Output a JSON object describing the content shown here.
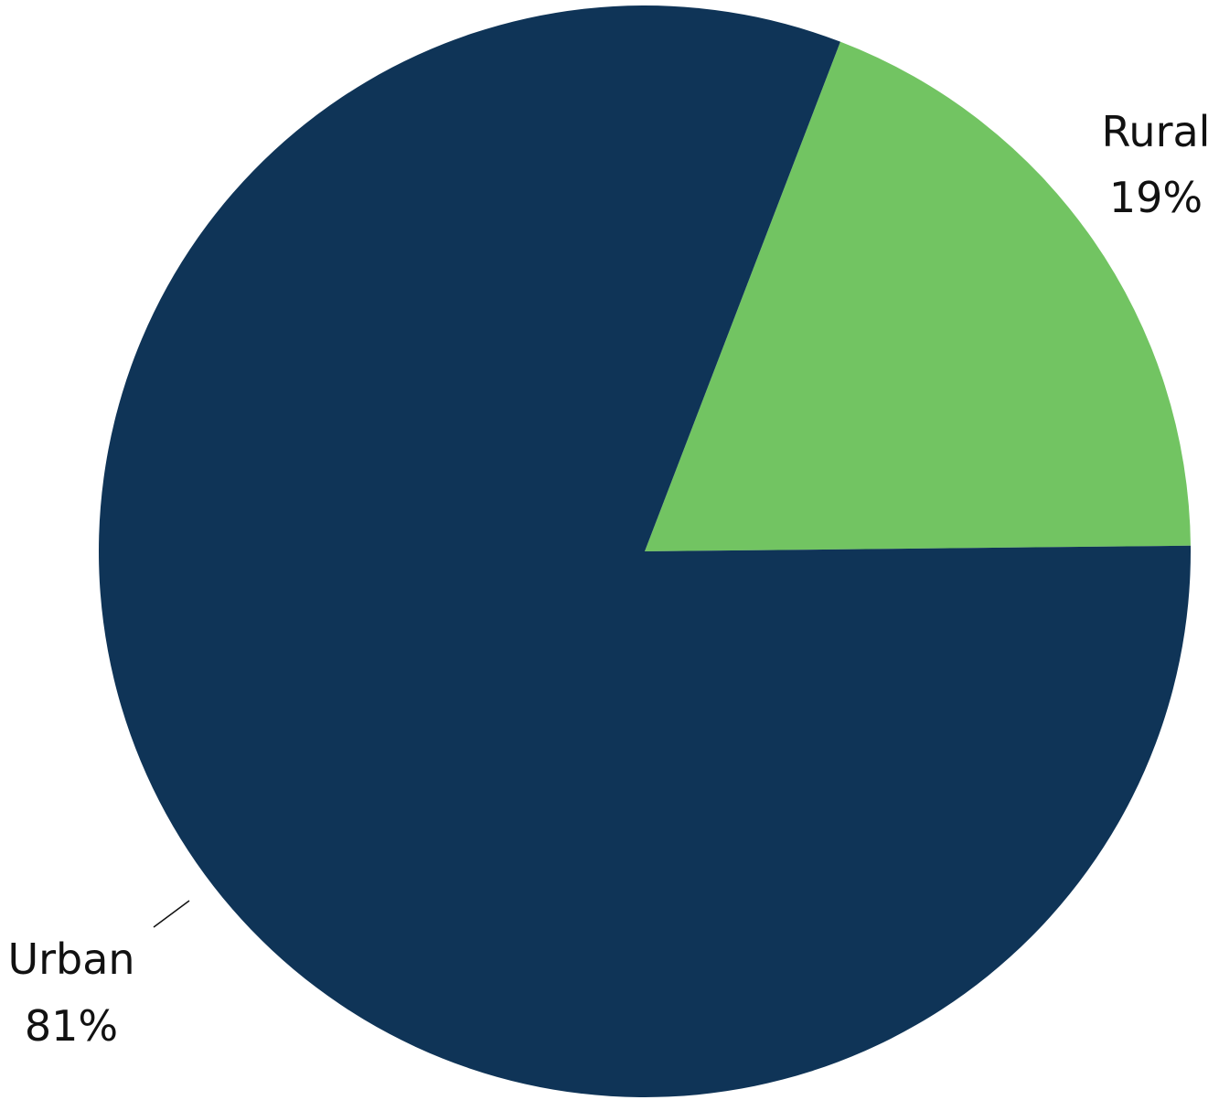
{
  "chart_data": {
    "type": "pie",
    "slices": [
      {
        "label": "Rural",
        "value": 19,
        "value_label": "19%",
        "color": "#72c462"
      },
      {
        "label": "Urban",
        "value": 81,
        "value_label": "81%",
        "color": "#0f3457"
      }
    ],
    "title": "",
    "legend": "none"
  }
}
